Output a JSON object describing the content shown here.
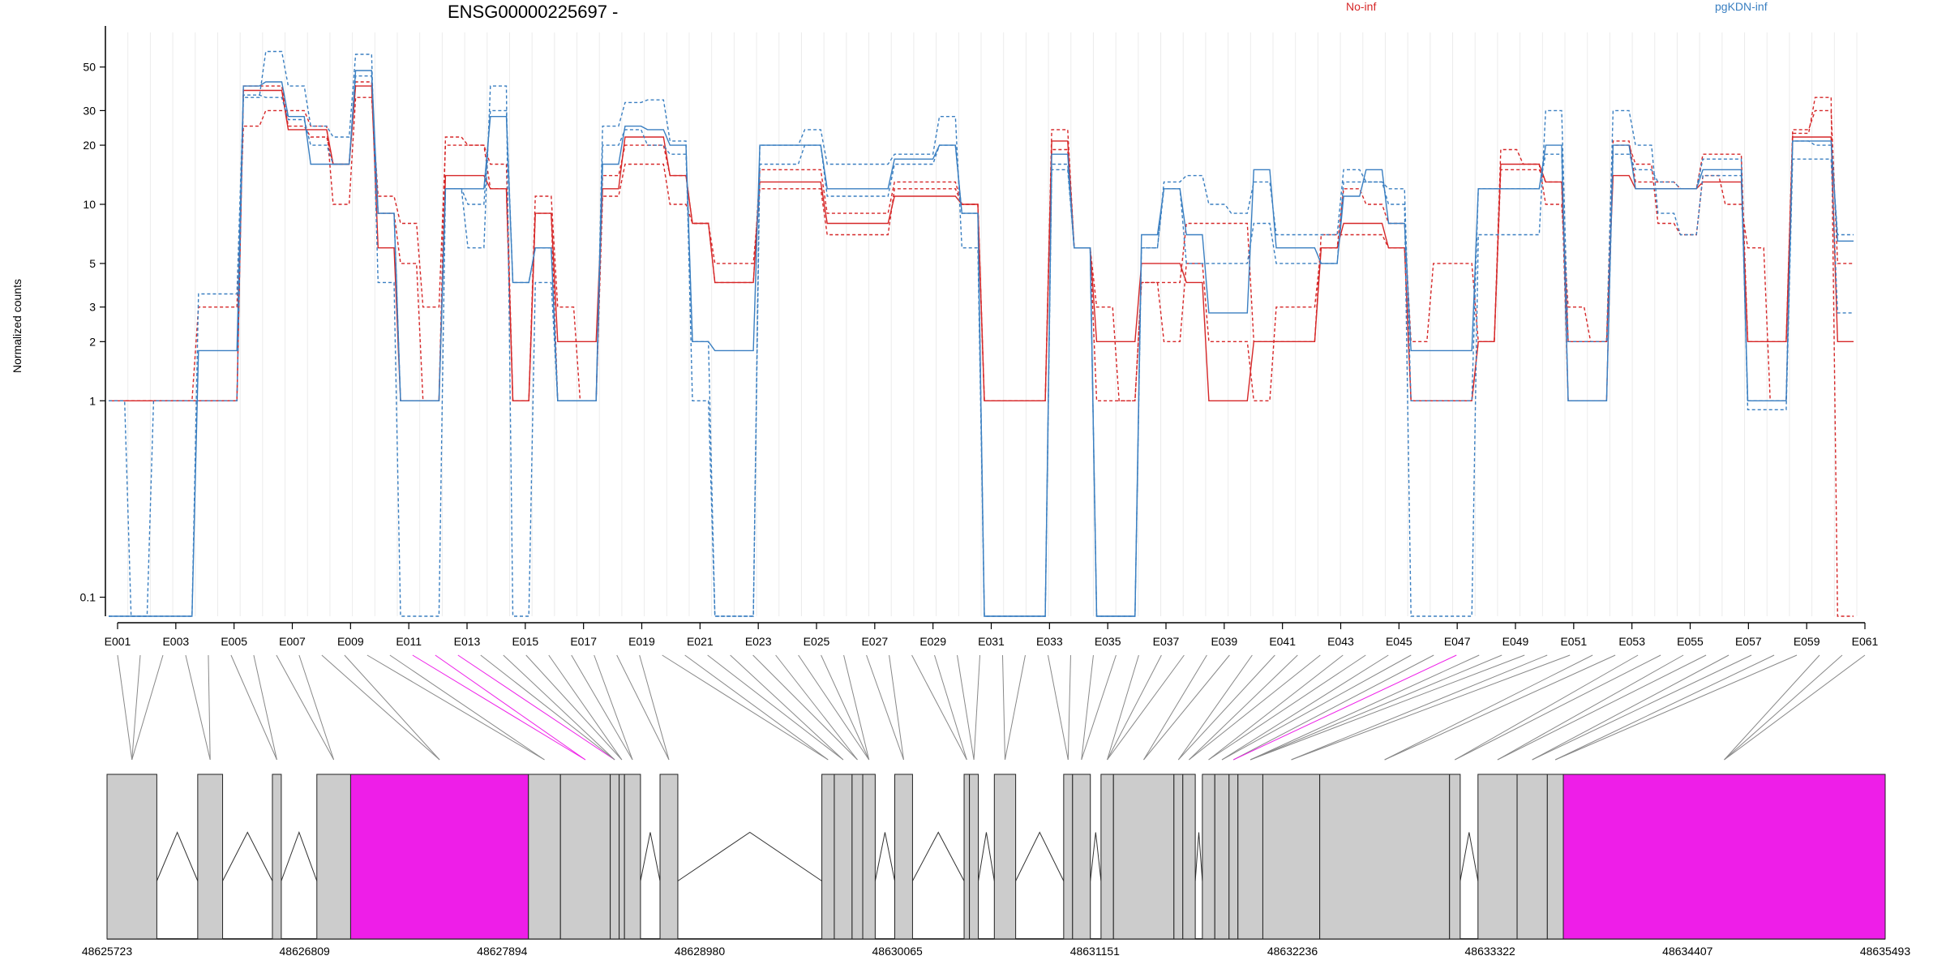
{
  "chart_data": {
    "type": "line",
    "title": "ENSG00000225697 -",
    "ylabel": "Normalized counts",
    "xlabel": "",
    "yscale": "log",
    "ylim": [
      0.08,
      75
    ],
    "yticks": [
      0.1,
      1,
      2,
      3,
      5,
      10,
      20,
      30,
      50
    ],
    "ytick_labels": [
      "0.1",
      "1",
      "2",
      "3",
      "5",
      "10",
      "20",
      "30",
      "50"
    ],
    "grid": "vertical",
    "legend_placement": "top",
    "colors": {
      "No-inf": "#d62728",
      "pgKDN-inf": "#3a7fc1",
      "highlight": "#ee1ee8",
      "exon": "#cccccc"
    },
    "exon_labels": [
      "E001",
      "E003",
      "E005",
      "E007",
      "E009",
      "E011",
      "E013",
      "E015",
      "E017",
      "E019",
      "E021",
      "E023",
      "E025",
      "E027",
      "E029",
      "E031",
      "E033",
      "E035",
      "E037",
      "E039",
      "E041",
      "E043",
      "E045",
      "E047",
      "E049",
      "E051",
      "E053",
      "E055",
      "E057",
      "E059",
      "E061"
    ],
    "genomic_labels": [
      "48625723",
      "48626809",
      "48627894",
      "48628980",
      "48630065",
      "48631151",
      "48632236",
      "48633322",
      "48634407",
      "48635493"
    ],
    "genomic_range": [
      48625723,
      48635493
    ],
    "highlight_exons": [
      13,
      14,
      15,
      59
    ],
    "series": [
      {
        "name": "No-inf",
        "style": "dashed",
        "values": [
          1,
          1,
          1,
          1,
          3,
          3,
          25,
          30,
          30,
          25,
          10,
          35,
          11,
          8,
          3,
          20,
          20,
          12,
          1,
          11,
          3,
          1,
          11,
          16,
          16,
          10,
          8,
          5,
          5,
          12,
          12,
          12,
          7,
          7,
          7,
          12,
          12,
          12,
          10,
          1,
          1,
          1,
          24,
          6,
          3,
          1,
          4,
          2,
          5,
          2,
          2,
          1,
          3,
          3,
          6,
          12,
          10,
          8,
          2,
          5,
          5,
          2,
          19,
          16,
          10,
          3,
          2,
          20,
          16,
          8,
          7,
          14,
          10,
          6,
          1,
          23,
          35,
          0.08
        ]
      },
      {
        "name": "No-inf",
        "style": "dashed",
        "values": [
          1,
          1,
          1,
          1,
          1,
          1,
          40,
          40,
          25,
          22,
          16,
          42,
          9,
          5,
          1,
          22,
          20,
          16,
          1,
          9,
          1,
          1,
          14,
          20,
          20,
          14,
          8,
          4,
          4,
          15,
          15,
          15,
          9,
          9,
          9,
          13,
          13,
          13,
          10,
          1,
          1,
          1,
          19,
          6,
          1,
          1,
          4,
          4,
          8,
          8,
          8,
          2,
          2,
          2,
          7,
          7,
          7,
          6,
          1,
          1,
          1,
          2,
          15,
          15,
          13,
          1,
          1,
          21,
          13,
          13,
          12,
          18,
          18,
          2,
          2,
          24,
          30,
          5
        ]
      },
      {
        "name": "No-inf",
        "style": "solid",
        "values": [
          1,
          1,
          1,
          1,
          1,
          1,
          38,
          38,
          24,
          24,
          16,
          40,
          6,
          1,
          1,
          14,
          14,
          12,
          1,
          9,
          2,
          2,
          12,
          22,
          22,
          14,
          8,
          4,
          4,
          13,
          13,
          13,
          8,
          8,
          8,
          11,
          11,
          11,
          10,
          1,
          1,
          1,
          21,
          6,
          2,
          2,
          5,
          5,
          4,
          1,
          1,
          2,
          2,
          2,
          6,
          8,
          8,
          6,
          1,
          1,
          1,
          2,
          16,
          16,
          13,
          2,
          2,
          14,
          12,
          12,
          12,
          13,
          13,
          2,
          2,
          22,
          22,
          2
        ]
      },
      {
        "name": "pgKDN-inf",
        "style": "dashed",
        "values": [
          1,
          0.08,
          1,
          1,
          1,
          1,
          35,
          60,
          40,
          25,
          22,
          58,
          4,
          0.08,
          0.08,
          12,
          6,
          40,
          0.08,
          4,
          1,
          1,
          25,
          33,
          34,
          21,
          1,
          0.08,
          0.08,
          20,
          20,
          24,
          16,
          16,
          16,
          18,
          18,
          28,
          6,
          0.08,
          0.08,
          0.08,
          16,
          6,
          0.08,
          0.08,
          6,
          13,
          14,
          10,
          9,
          13,
          7,
          7,
          7,
          15,
          13,
          10,
          0.08,
          0.08,
          0.08,
          7,
          7,
          7,
          30,
          2,
          2,
          30,
          20,
          9,
          7,
          14,
          14,
          1,
          1,
          21,
          20,
          7
        ]
      },
      {
        "name": "pgKDN-inf",
        "style": "dashed",
        "values": [
          0.08,
          0.08,
          0.08,
          0.08,
          3.5,
          3.5,
          36,
          35,
          27,
          20,
          16,
          45,
          9,
          1,
          1,
          12,
          10,
          30,
          4,
          6,
          1,
          1,
          20,
          24,
          20,
          18,
          2,
          0.08,
          0.08,
          16,
          16,
          20,
          11,
          11,
          11,
          16,
          16,
          20,
          9,
          0.08,
          0.08,
          0.08,
          15,
          6,
          0.08,
          0.08,
          6,
          12,
          5,
          5,
          5,
          8,
          5,
          5,
          5,
          13,
          13,
          12,
          1,
          1,
          1,
          12,
          12,
          12,
          18,
          1,
          1,
          18,
          15,
          13,
          12,
          17,
          17,
          0.9,
          0.9,
          17,
          17,
          2.8
        ]
      },
      {
        "name": "pgKDN-inf",
        "style": "solid",
        "values": [
          0.08,
          0.08,
          0.08,
          0.08,
          1.8,
          1.8,
          40,
          42,
          28,
          16,
          16,
          48,
          9,
          1,
          1,
          12,
          12,
          28,
          4,
          6,
          1,
          1,
          16,
          25,
          24,
          20,
          2,
          1.8,
          1.8,
          20,
          20,
          20,
          12,
          12,
          12,
          17,
          17,
          20,
          9,
          0.08,
          0.08,
          0.08,
          18,
          6,
          0.08,
          0.08,
          7,
          12,
          7,
          2.8,
          2.8,
          15,
          6,
          6,
          5,
          11,
          15,
          8,
          1.8,
          1.8,
          1.8,
          12,
          12,
          12,
          20,
          1,
          1,
          20,
          12,
          12,
          12,
          15,
          15,
          1,
          1,
          21,
          21,
          6.5
        ]
      }
    ]
  }
}
